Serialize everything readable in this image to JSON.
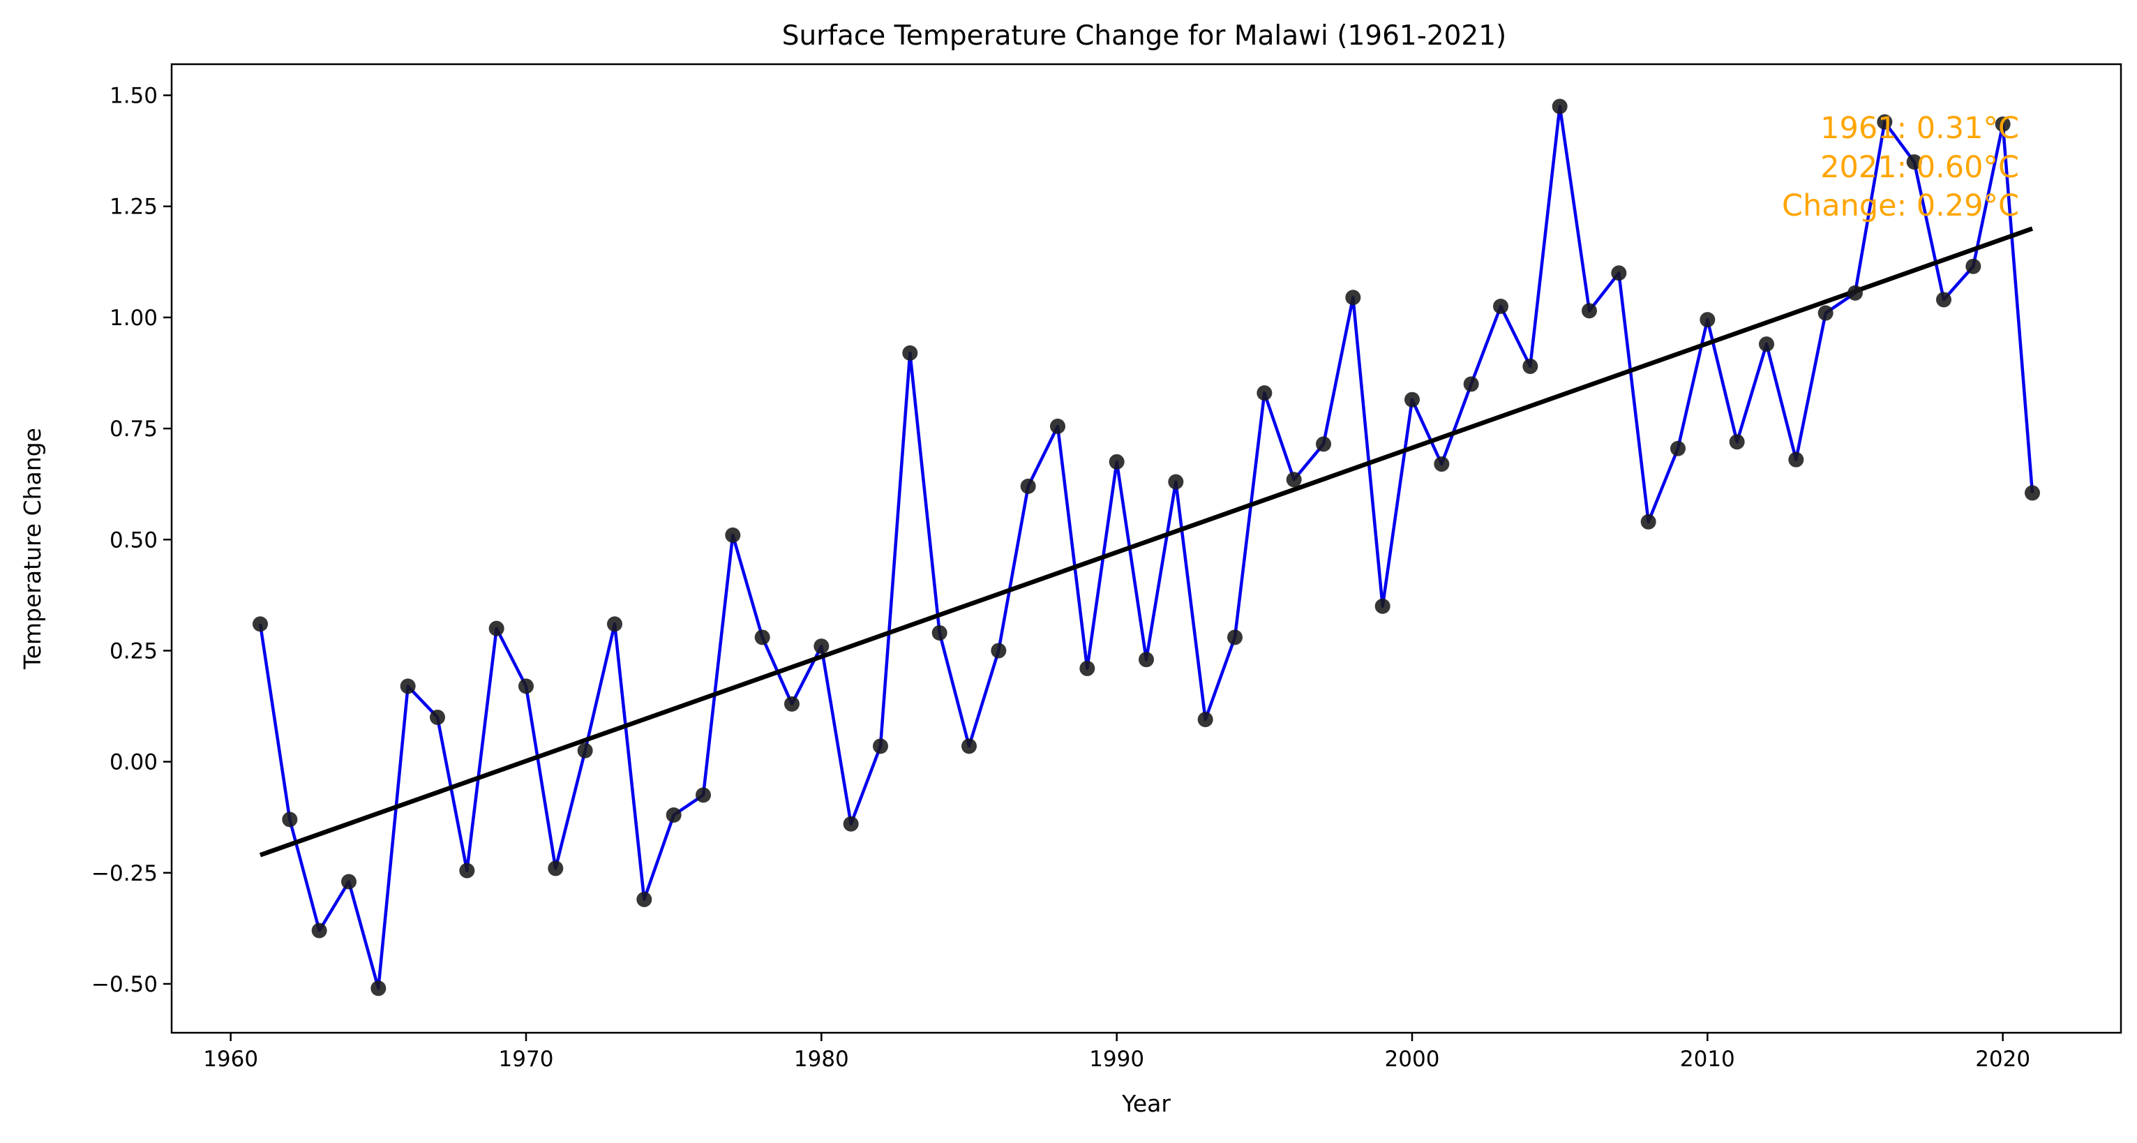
{
  "chart_data": {
    "type": "line",
    "title": "Surface Temperature Change for Malawi (1961-2021)",
    "xlabel": "Year",
    "ylabel": "Temperature Change",
    "xlim": [
      1958.0,
      2024.0
    ],
    "ylim": [
      -0.61,
      1.57
    ],
    "x_ticks": [
      1960,
      1970,
      1980,
      1990,
      2000,
      2010,
      2020
    ],
    "x_tick_labels": [
      "1960",
      "1970",
      "1980",
      "1990",
      "2000",
      "2010",
      "2020"
    ],
    "y_ticks": [
      -0.5,
      -0.25,
      0.0,
      0.25,
      0.5,
      0.75,
      1.0,
      1.25,
      1.5
    ],
    "y_tick_labels": [
      "−0.50",
      "−0.25",
      "0.00",
      "0.25",
      "0.50",
      "0.75",
      "1.00",
      "1.25",
      "1.50"
    ],
    "grid": false,
    "series": [
      {
        "type": "line-with-markers",
        "line_color": "#0000ee",
        "marker_color": "#1a1a1a",
        "x": [
          1961,
          1962,
          1963,
          1964,
          1965,
          1966,
          1967,
          1968,
          1969,
          1970,
          1971,
          1972,
          1973,
          1974,
          1975,
          1976,
          1977,
          1978,
          1979,
          1980,
          1981,
          1982,
          1983,
          1984,
          1985,
          1986,
          1987,
          1988,
          1989,
          1990,
          1991,
          1992,
          1993,
          1994,
          1995,
          1996,
          1997,
          1998,
          1999,
          2000,
          2001,
          2002,
          2003,
          2004,
          2005,
          2006,
          2007,
          2008,
          2009,
          2010,
          2011,
          2012,
          2013,
          2014,
          2015,
          2016,
          2017,
          2018,
          2019,
          2020,
          2021
        ],
        "y": [
          0.31,
          -0.13,
          -0.38,
          -0.27,
          -0.51,
          0.17,
          0.1,
          -0.245,
          0.3,
          0.17,
          -0.24,
          0.025,
          0.31,
          -0.31,
          -0.12,
          -0.075,
          0.51,
          0.28,
          0.13,
          0.26,
          -0.14,
          0.035,
          0.92,
          0.29,
          0.035,
          0.25,
          0.62,
          0.755,
          0.21,
          0.675,
          0.23,
          0.63,
          0.095,
          0.28,
          0.83,
          0.635,
          0.715,
          1.045,
          0.35,
          0.815,
          0.67,
          0.85,
          1.025,
          0.89,
          1.475,
          1.015,
          1.1,
          0.54,
          0.705,
          0.995,
          0.72,
          0.94,
          0.68,
          1.01,
          1.055,
          1.44,
          1.35,
          1.04,
          1.115,
          1.435,
          0.605
        ]
      },
      {
        "type": "trend-line",
        "color": "#000000",
        "x": [
          1961,
          2021
        ],
        "y": [
          -0.21,
          1.2
        ]
      }
    ],
    "annotations": {
      "color": "#ffa500",
      "position": "top-right",
      "lines": [
        "1961: 0.31°C",
        "2021: 0.60°C",
        "Change: 0.29°C"
      ]
    }
  }
}
